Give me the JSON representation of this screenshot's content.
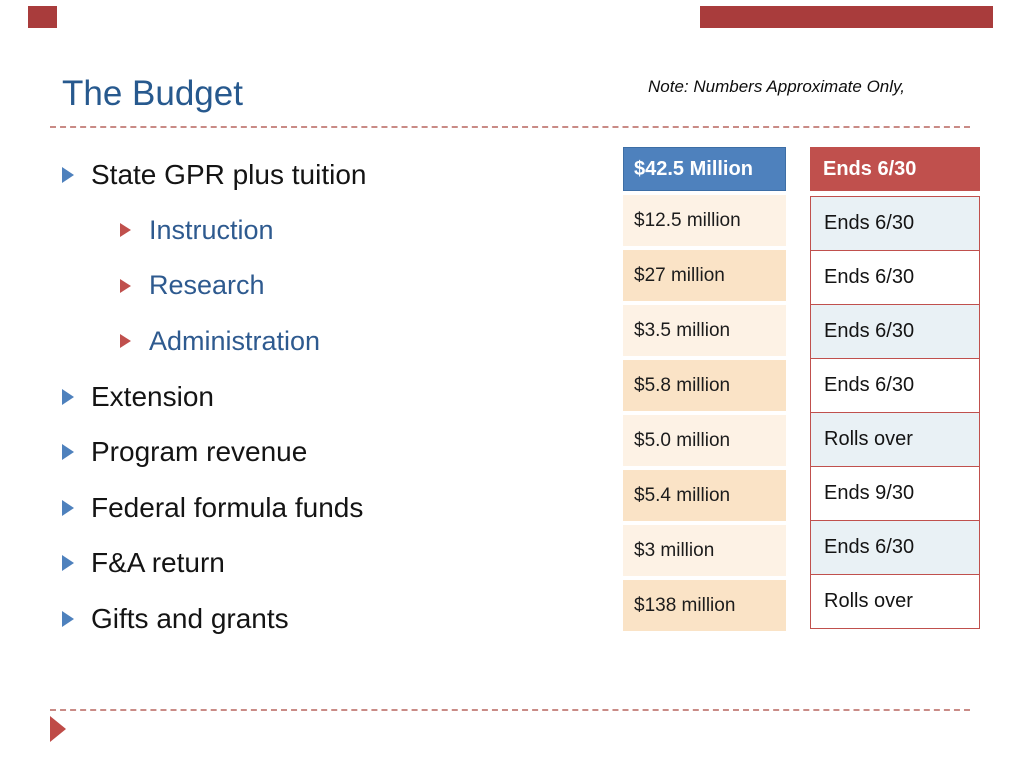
{
  "slide": {
    "title": "The Budget",
    "note": "Note: Numbers Approximate Only,"
  },
  "bullets": [
    {
      "label": "State GPR plus tuition",
      "level": 1
    },
    {
      "label": "Instruction",
      "level": 2
    },
    {
      "label": "Research",
      "level": 2
    },
    {
      "label": "Administration",
      "level": 2
    },
    {
      "label": "Extension",
      "level": 1
    },
    {
      "label": "Program revenue",
      "level": 1
    },
    {
      "label": "Federal formula funds",
      "level": 1
    },
    {
      "label": "F&A return",
      "level": 1
    },
    {
      "label": "Gifts and grants",
      "level": 1
    }
  ],
  "amounts": {
    "header": "$42.5 Million",
    "rows": [
      "$12.5 million",
      "$27 million",
      "$3.5 million",
      "$5.8 million",
      "$5.0 million",
      "$5.4 million",
      "$3 million",
      "$138 million"
    ]
  },
  "status": {
    "header": "Ends 6/30",
    "rows": [
      "Ends 6/30",
      "Ends 6/30",
      "Ends 6/30",
      "Ends 6/30",
      "Rolls over",
      "Ends 9/30",
      "Ends 6/30",
      "Rolls over"
    ]
  },
  "colors": {
    "title_blue": "#27598E",
    "accent_blue": "#4E81BD",
    "accent_red": "#C0504D",
    "decor_red": "#A93C3C",
    "sub_bullet_text_blue": "#2E5A8F",
    "amount_row_peach": "#FAE3C6",
    "amount_row_cream": "#FDF2E5",
    "status_row_blue": "#E9F1F5",
    "dashed_rule_red": "#C98B86"
  }
}
